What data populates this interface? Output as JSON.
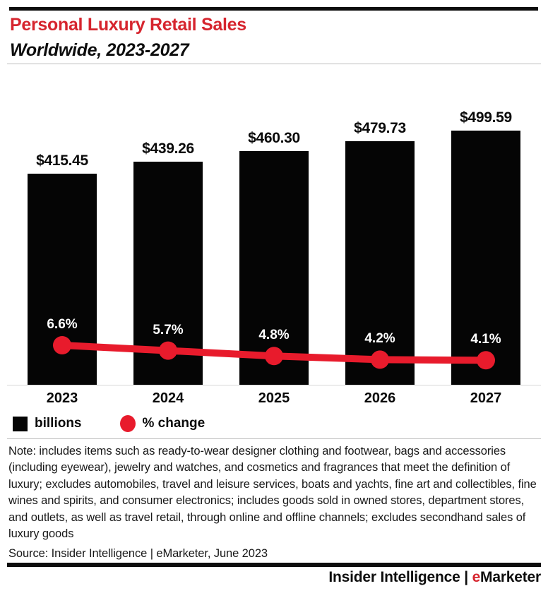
{
  "header": {
    "title": "Personal Luxury Retail Sales",
    "subtitle": "Worldwide, 2023-2027",
    "title_color": "#d6252e"
  },
  "chart_data": {
    "type": "bar",
    "categories": [
      "2023",
      "2024",
      "2025",
      "2026",
      "2027"
    ],
    "series": [
      {
        "name": "billions",
        "type": "bar",
        "values": [
          415.45,
          439.26,
          460.3,
          479.73,
          499.59
        ],
        "labels": [
          "$415.45",
          "$439.26",
          "$460.30",
          "$479.73",
          "$499.59"
        ],
        "color": "#050505"
      },
      {
        "name": "% change",
        "type": "line",
        "values": [
          6.6,
          5.7,
          4.8,
          4.2,
          4.1
        ],
        "labels": [
          "6.6%",
          "5.7%",
          "4.8%",
          "4.2%",
          "4.1%"
        ],
        "color": "#e81b2c"
      }
    ],
    "legend": [
      {
        "label": "billions",
        "swatch": "square",
        "color": "#050505"
      },
      {
        "label": "% change",
        "swatch": "circle",
        "color": "#e81b2c"
      }
    ],
    "title": "Personal Luxury Retail Sales",
    "subtitle": "Worldwide, 2023-2027",
    "xlabel": "",
    "ylabel": "",
    "grid": false,
    "legend_position": "bottom-left",
    "value_prefix": "$",
    "value_unit": "billions"
  },
  "note": {
    "text": "Note: includes items such as ready-to-wear designer clothing and footwear, bags and accessories (including eyewear), jewelry and watches, and cosmetics and fragrances that meet the definition of luxury; excludes automobiles, travel and leisure services, boats and yachts, fine art and collectibles, fine wines and spirits, and consumer electronics; includes goods sold in owned stores, department stores, and outlets, as well as travel retail, through online and offline channels; excludes secondhand sales of luxury goods",
    "source": "Source: Insider Intelligence | eMarketer, June 2023"
  },
  "footer": {
    "brand_left": "Insider Intelligence",
    "separator": " | ",
    "brand_right_accent": "e",
    "brand_right_rest": "Marketer",
    "accent_color": "#d6252e"
  }
}
